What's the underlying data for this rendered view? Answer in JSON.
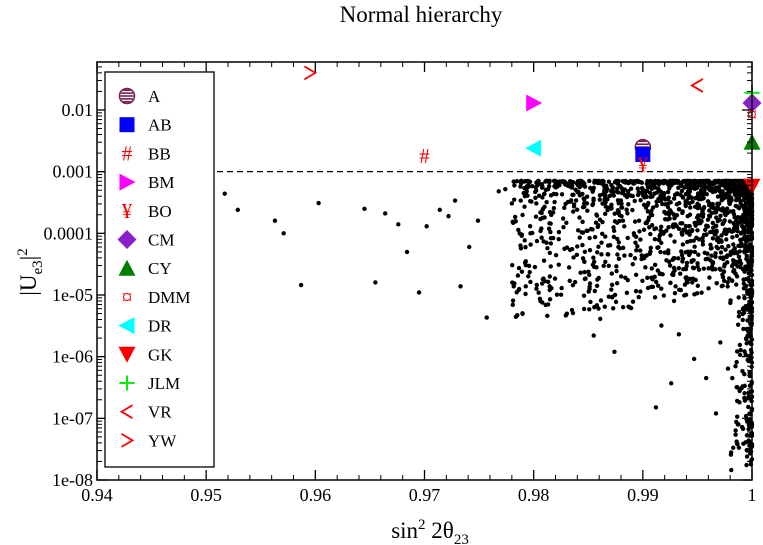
{
  "chart_data": {
    "type": "scatter",
    "title": "Normal hierarchy",
    "xlabel": "sin² 2θ₂₃",
    "xlabel_parts": {
      "base": "sin",
      "sup": "2",
      "mid": " 2θ",
      "sub": "23"
    },
    "ylabel": "|U_e3|^2",
    "ylabel_parts": {
      "pre": "|U",
      "sub": "e3",
      "post": "|",
      "sup": "2"
    },
    "xlim": [
      0.94,
      1.0
    ],
    "ylim": [
      1e-08,
      0.06
    ],
    "yscale": "log",
    "xticks": [
      0.94,
      0.95,
      0.96,
      0.97,
      0.98,
      0.99,
      1.0
    ],
    "xtick_labels": [
      "0.94",
      "0.95",
      "0.96",
      "0.97",
      "0.98",
      "0.99",
      "1"
    ],
    "yticks": [
      1e-08,
      1e-07,
      1e-06,
      1e-05,
      0.0001,
      0.001,
      0.01
    ],
    "ytick_labels": [
      "1e-08",
      "1e-07",
      "1e-06",
      "1e-05",
      "0.0001",
      "0.001",
      "0.01"
    ],
    "reference_line": {
      "y": 0.001,
      "style": "dashed"
    },
    "legend_position": "upper-left",
    "models": [
      {
        "name": "A",
        "x": 0.99,
        "y": 0.0025,
        "marker": "circle-striped",
        "color": "#7a1f4f"
      },
      {
        "name": "AB",
        "x": 0.99,
        "y": 0.0019,
        "marker": "square",
        "color": "#0000ff"
      },
      {
        "name": "BB",
        "x": 0.97,
        "y": 0.0018,
        "marker": "#",
        "color": "#ff0000"
      },
      {
        "name": "BM",
        "x": 0.98,
        "y": 0.013,
        "marker": "triangle-right",
        "color": "#ff00ff"
      },
      {
        "name": "BO",
        "x": 0.99,
        "y": 0.0013,
        "marker": "¥",
        "color": "#ff0000"
      },
      {
        "name": "CM",
        "x": 1.0,
        "y": 0.013,
        "marker": "diamond",
        "color": "#8b1fc8"
      },
      {
        "name": "CY",
        "x": 1.0,
        "y": 0.003,
        "marker": "triangle-up",
        "color": "#008000"
      },
      {
        "name": "DMM",
        "x": 1.0,
        "y": 0.0085,
        "marker": "¤",
        "color": "#ff0000"
      },
      {
        "name": "DR",
        "x": 0.98,
        "y": 0.0024,
        "marker": "triangle-left",
        "color": "#00ffff"
      },
      {
        "name": "GK",
        "x": 1.0,
        "y": 0.00058,
        "marker": "triangle-down",
        "color": "#ff0000"
      },
      {
        "name": "JLM",
        "x": 1.0,
        "y": 0.019,
        "marker": "+",
        "color": "#00ee00"
      },
      {
        "name": "VR",
        "x": 0.995,
        "y": 0.025,
        "marker": "<",
        "color": "#ff0000"
      },
      {
        "name": "YW",
        "x": 0.9595,
        "y": 0.04,
        "marker": ">",
        "color": "#ff0000"
      }
    ],
    "background_points": {
      "description_series": "random scan points",
      "color": "#000000",
      "points": [
        [
          0.9517,
          0.00044
        ],
        [
          0.9529,
          0.00024
        ],
        [
          0.9563,
          0.00016
        ],
        [
          0.9571,
          0.0001
        ],
        [
          0.9587,
          1.45e-05
        ],
        [
          0.9603,
          0.00031
        ],
        [
          0.9645,
          0.00025
        ],
        [
          0.9655,
          1.6e-05
        ],
        [
          0.9664,
          0.00021
        ],
        [
          0.9676,
          0.00014
        ],
        [
          0.9684,
          5e-05
        ],
        [
          0.9695,
          1.1e-05
        ],
        [
          0.9702,
          0.00013
        ],
        [
          0.9714,
          0.00024
        ],
        [
          0.9722,
          0.00019
        ],
        [
          0.9728,
          0.00034
        ],
        [
          0.9733,
          1.38e-05
        ],
        [
          0.9741,
          6e-05
        ],
        [
          0.9749,
          0.00016
        ],
        [
          0.9757,
          4.3e-06
        ],
        [
          0.9768,
          0.00048
        ],
        [
          0.9774,
          0.00052
        ],
        [
          0.9785,
          4.7e-06
        ],
        [
          0.9792,
          0.0004
        ],
        [
          0.9803,
          7.5e-05
        ],
        [
          0.9811,
          6.9e-06
        ],
        [
          0.9819,
          0.00058
        ],
        [
          0.9823,
          3.1e-05
        ],
        [
          0.9836,
          5.1e-06
        ],
        [
          0.9842,
          0.00018
        ],
        [
          0.9855,
          2.2e-06
        ],
        [
          0.9861,
          4.1e-06
        ],
        [
          0.9869,
          0.00026
        ],
        [
          0.9874,
          1.2e-06
        ],
        [
          0.9881,
          0.00045
        ],
        [
          0.9883,
          0.00013
        ],
        [
          0.9891,
          7.8e-06
        ],
        [
          0.9894,
          5.3e-05
        ],
        [
          0.9905,
          0.00031
        ],
        [
          0.9912,
          1.5e-07
        ],
        [
          0.9917,
          3.2e-06
        ],
        [
          0.9921,
          0.00021
        ],
        [
          0.9926,
          3.7e-07
        ],
        [
          0.9933,
          2.3e-06
        ],
        [
          0.9941,
          1.6e-05
        ],
        [
          0.9947,
          9.2e-07
        ],
        [
          0.9952,
          0.00042
        ],
        [
          0.9958,
          4.5e-07
        ],
        [
          0.9962,
          6.5e-05
        ],
        [
          0.9967,
          1.2e-07
        ],
        [
          0.9971,
          1.7e-06
        ],
        [
          0.9975,
          0.00021
        ],
        [
          0.9978,
          6.4e-07
        ],
        [
          0.9981,
          1.45e-08
        ],
        [
          0.9983,
          3.2e-05
        ],
        [
          0.9986,
          3.2e-07
        ],
        [
          0.9988,
          4.5e-06
        ],
        [
          0.9991,
          7.2e-08
        ],
        [
          0.9993,
          0.00052
        ],
        [
          0.9995,
          1.75e-08
        ],
        [
          0.9996,
          2.2e-06
        ],
        [
          0.9997,
          2.6e-07
        ],
        [
          0.9998,
          4.1e-08
        ],
        [
          0.9999,
          1.8e-08
        ]
      ]
    }
  }
}
